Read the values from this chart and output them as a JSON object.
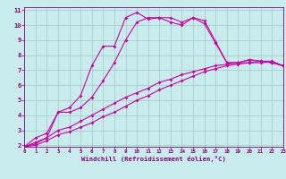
{
  "xlabel": "Windchill (Refroidissement éolien,°C)",
  "background_color": "#c8ecec",
  "grid_color": "#a0c8c8",
  "line_color": "#cc00aa",
  "xlim": [
    0,
    23
  ],
  "ylim": [
    2,
    11
  ],
  "xticks": [
    0,
    1,
    2,
    3,
    4,
    5,
    6,
    7,
    8,
    9,
    10,
    11,
    12,
    13,
    14,
    15,
    16,
    17,
    18,
    19,
    20,
    21,
    22,
    23
  ],
  "yticks": [
    2,
    3,
    4,
    5,
    6,
    7,
    8,
    9,
    10,
    11
  ],
  "line1_x": [
    0,
    1,
    2,
    3,
    4,
    5,
    6,
    7,
    8,
    9,
    10,
    11,
    12,
    13,
    14,
    15,
    16,
    17,
    18,
    19,
    20,
    21,
    22,
    23
  ],
  "line1_y": [
    1.9,
    2.5,
    2.8,
    4.2,
    4.5,
    5.3,
    7.3,
    8.6,
    8.6,
    10.5,
    10.85,
    10.4,
    10.5,
    10.2,
    10.0,
    10.5,
    10.3,
    8.9,
    7.5,
    7.5,
    7.7,
    7.6,
    7.5,
    7.3
  ],
  "line2_x": [
    0,
    1,
    2,
    3,
    4,
    5,
    6,
    7,
    8,
    9,
    10,
    11,
    12,
    13,
    14,
    15,
    16,
    17,
    18,
    19,
    20,
    21,
    22,
    23
  ],
  "line2_y": [
    1.9,
    2.2,
    2.5,
    4.2,
    4.2,
    4.5,
    5.2,
    6.3,
    7.5,
    9.0,
    10.2,
    10.5,
    10.5,
    10.5,
    10.2,
    10.5,
    10.1,
    8.8,
    7.5,
    7.5,
    7.7,
    7.6,
    7.5,
    7.3
  ],
  "line3_x": [
    0,
    1,
    2,
    3,
    4,
    5,
    6,
    7,
    8,
    9,
    10,
    11,
    12,
    13,
    14,
    15,
    16,
    17,
    18,
    19,
    20,
    21,
    22,
    23
  ],
  "line3_y": [
    1.9,
    2.0,
    2.3,
    2.7,
    2.9,
    3.2,
    3.5,
    3.9,
    4.2,
    4.6,
    5.0,
    5.3,
    5.7,
    6.0,
    6.3,
    6.6,
    6.9,
    7.1,
    7.3,
    7.4,
    7.5,
    7.5,
    7.55,
    7.3
  ],
  "line4_x": [
    0,
    1,
    2,
    3,
    4,
    5,
    6,
    7,
    8,
    9,
    10,
    11,
    12,
    13,
    14,
    15,
    16,
    17,
    18,
    19,
    20,
    21,
    22,
    23
  ],
  "line4_y": [
    1.9,
    2.1,
    2.5,
    3.0,
    3.2,
    3.6,
    4.0,
    4.4,
    4.8,
    5.2,
    5.5,
    5.8,
    6.2,
    6.4,
    6.7,
    6.9,
    7.1,
    7.3,
    7.4,
    7.5,
    7.5,
    7.6,
    7.6,
    7.3
  ],
  "marker_size": 2,
  "line_width": 0.8,
  "tick_fontsize_x": 4.2,
  "tick_fontsize_y": 5.0,
  "xlabel_fontsize": 5.2,
  "spine_color": "#880088",
  "tick_color": "#880088"
}
